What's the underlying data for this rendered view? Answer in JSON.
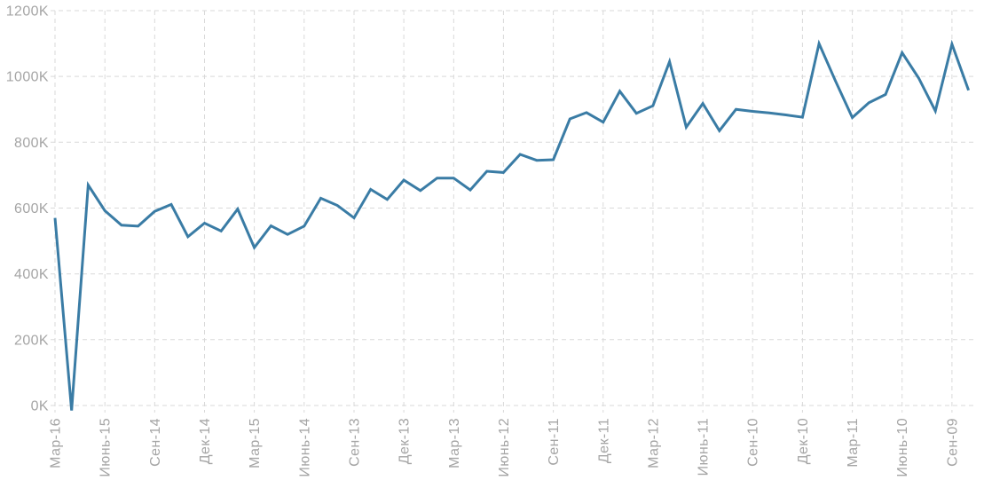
{
  "chart": {
    "title": "",
    "accent_color": "#3a7ca5",
    "grid_color": "#d9d9d9",
    "label_color": "#a5a5a5",
    "background_color": "#ffffff"
  },
  "chart_data": {
    "type": "line",
    "title": "",
    "xlabel": "",
    "ylabel": "",
    "y_unit": "K",
    "ylim": [
      0,
      1200
    ],
    "y_ticks": [
      "0K",
      "200K",
      "400K",
      "600K",
      "800K",
      "1000K",
      "1200K"
    ],
    "grid": "dashed",
    "legend": "none",
    "x_tick_labels": [
      "Мар-16",
      "Июнь-15",
      "Сен-14",
      "Дек-14",
      "Мар-15",
      "Июнь-14",
      "Сен-13",
      "Дек-13",
      "Мар-13",
      "Июнь-12",
      "Сен-11",
      "Дек-11",
      "Мар-12",
      "Июнь-11",
      "Сен-10",
      "Дек-10",
      "Мар-11",
      "Июнь-10",
      "Сен-09"
    ],
    "ticks_every_n_points": 3,
    "x_label_rotation_deg": -90,
    "series": [
      {
        "name": "",
        "values_k": [
          570,
          -15,
          670,
          592,
          548,
          545,
          590,
          611,
          513,
          554,
          530,
          597,
          480,
          546,
          520,
          545,
          630,
          608,
          570,
          657,
          626,
          685,
          653,
          691,
          691,
          655,
          712,
          708,
          763,
          745,
          747,
          871,
          890,
          861,
          955,
          888,
          911,
          1045,
          846,
          918,
          835,
          900,
          894,
          889,
          883,
          876,
          1100,
          985,
          875,
          920,
          945,
          1072,
          995,
          895,
          1098,
          958
        ]
      }
    ]
  }
}
